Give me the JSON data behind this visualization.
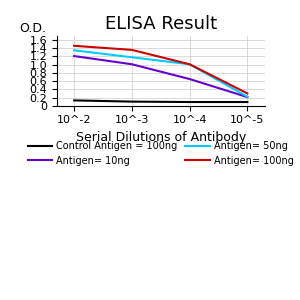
{
  "title": "ELISA Result",
  "ylabel": "O.D.",
  "xlabel": "Serial Dilutions of Antibody",
  "x_values": [
    0.01,
    0.001,
    0.0001,
    1e-05
  ],
  "x_labels": [
    "10^-2",
    "10^-3",
    "10^-4",
    "10^-5"
  ],
  "series": [
    {
      "label": "Control Antigen = 100ng",
      "color": "#000000",
      "y_values": [
        0.13,
        0.1,
        0.09,
        0.09
      ]
    },
    {
      "label": "Antigen= 10ng",
      "color": "#6600cc",
      "y_values": [
        1.21,
        1.01,
        0.65,
        0.21
      ]
    },
    {
      "label": "Antigen= 50ng",
      "color": "#00ccff",
      "y_values": [
        1.35,
        1.18,
        1.01,
        0.22
      ]
    },
    {
      "label": "Antigen= 100ng",
      "color": "#cc0000",
      "y_values": [
        1.46,
        1.36,
        1.01,
        0.3
      ]
    }
  ],
  "ylim": [
    0,
    1.7
  ],
  "yticks": [
    0,
    0.2,
    0.4,
    0.6,
    0.8,
    1.0,
    1.2,
    1.4,
    1.6
  ],
  "title_fontsize": 13,
  "label_fontsize": 9,
  "tick_fontsize": 8,
  "legend_fontsize": 7,
  "background_color": "#ffffff",
  "grid_color": "#cccccc"
}
